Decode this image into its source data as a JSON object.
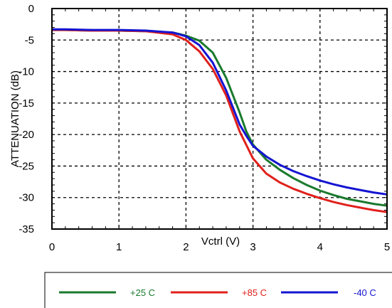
{
  "chart_data": {
    "type": "line",
    "xlabel": "Vctrl (V)",
    "ylabel": "ATTENUATION (dB)",
    "xlim": [
      0,
      5
    ],
    "ylim": [
      -35,
      0
    ],
    "x_ticks": [
      0,
      1,
      2,
      3,
      4,
      5
    ],
    "y_ticks": [
      0,
      -5,
      -10,
      -15,
      -20,
      -25,
      -30,
      -35
    ],
    "grid": true,
    "legend_position": "bottom",
    "series": [
      {
        "name": "+25 C",
        "color": "#1a7a2e",
        "points": [
          [
            0,
            -3.4
          ],
          [
            0.2,
            -3.4
          ],
          [
            0.6,
            -3.5
          ],
          [
            1.0,
            -3.5
          ],
          [
            1.4,
            -3.6
          ],
          [
            1.8,
            -3.8
          ],
          [
            2.0,
            -4.3
          ],
          [
            2.2,
            -5.1
          ],
          [
            2.4,
            -7.0
          ],
          [
            2.6,
            -11.0
          ],
          [
            2.8,
            -16.5
          ],
          [
            2.9,
            -19.5
          ],
          [
            3.0,
            -21.6
          ],
          [
            3.2,
            -24.0
          ],
          [
            3.4,
            -25.6
          ],
          [
            3.6,
            -26.9
          ],
          [
            3.8,
            -28.0
          ],
          [
            4.0,
            -28.9
          ],
          [
            4.2,
            -29.6
          ],
          [
            4.4,
            -30.2
          ],
          [
            4.6,
            -30.6
          ],
          [
            4.8,
            -31.0
          ],
          [
            5.0,
            -31.3
          ]
        ]
      },
      {
        "name": "+85 C",
        "color": "#e0201b",
        "points": [
          [
            0,
            -3.4
          ],
          [
            0.2,
            -3.4
          ],
          [
            0.6,
            -3.5
          ],
          [
            1.0,
            -3.5
          ],
          [
            1.4,
            -3.6
          ],
          [
            1.8,
            -4.1
          ],
          [
            2.0,
            -5.0
          ],
          [
            2.2,
            -6.8
          ],
          [
            2.4,
            -9.6
          ],
          [
            2.6,
            -13.8
          ],
          [
            2.8,
            -19.5
          ],
          [
            3.0,
            -23.8
          ],
          [
            3.2,
            -26.2
          ],
          [
            3.4,
            -27.6
          ],
          [
            3.6,
            -28.6
          ],
          [
            3.8,
            -29.4
          ],
          [
            4.0,
            -30.1
          ],
          [
            4.2,
            -30.7
          ],
          [
            4.4,
            -31.2
          ],
          [
            4.6,
            -31.6
          ],
          [
            4.8,
            -32.0
          ],
          [
            5.0,
            -32.3
          ]
        ]
      },
      {
        "name": "-40 C",
        "color": "#1414d2",
        "points": [
          [
            0,
            -3.3
          ],
          [
            0.2,
            -3.3
          ],
          [
            0.6,
            -3.4
          ],
          [
            1.0,
            -3.4
          ],
          [
            1.4,
            -3.5
          ],
          [
            1.8,
            -3.8
          ],
          [
            2.0,
            -4.4
          ],
          [
            2.2,
            -5.8
          ],
          [
            2.4,
            -8.6
          ],
          [
            2.6,
            -13.0
          ],
          [
            2.8,
            -18.4
          ],
          [
            2.9,
            -20.2
          ],
          [
            3.0,
            -21.8
          ],
          [
            3.2,
            -23.5
          ],
          [
            3.4,
            -24.8
          ],
          [
            3.6,
            -25.8
          ],
          [
            3.8,
            -26.6
          ],
          [
            4.0,
            -27.3
          ],
          [
            4.2,
            -27.9
          ],
          [
            4.4,
            -28.4
          ],
          [
            4.6,
            -28.8
          ],
          [
            4.8,
            -29.2
          ],
          [
            5.0,
            -29.5
          ]
        ]
      }
    ]
  }
}
